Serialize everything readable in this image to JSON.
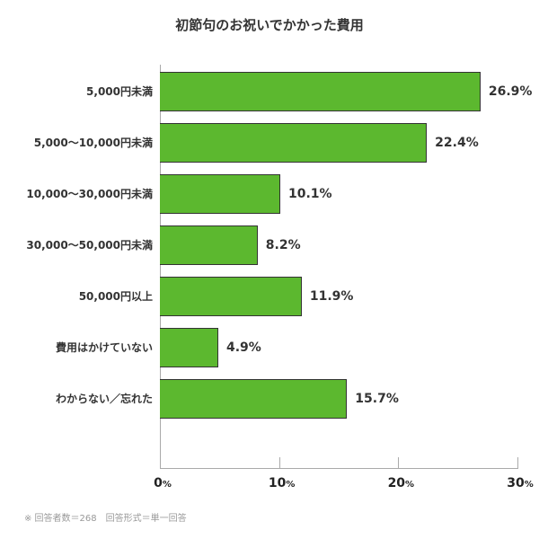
{
  "chart_data": {
    "type": "bar",
    "orientation": "horizontal",
    "title": "初節句のお祝いでかかった費用",
    "categories": [
      "5,000円未満",
      "5,000〜10,000円未満",
      "10,000〜30,000円未満",
      "30,000〜50,000円未満",
      "50,000円以上",
      "費用はかけていない",
      "わからない／忘れた"
    ],
    "values": [
      26.9,
      22.4,
      10.1,
      8.2,
      11.9,
      4.9,
      15.7
    ],
    "value_labels": [
      "26.9%",
      "22.4%",
      "10.1%",
      "8.2%",
      "11.9%",
      "4.9%",
      "15.7%"
    ],
    "xlabel": "",
    "ylabel": "",
    "xlim": [
      0,
      30
    ],
    "x_ticks": [
      0,
      10,
      20,
      30
    ],
    "x_tick_labels": [
      {
        "num": "0",
        "unit": "%"
      },
      {
        "num": "10",
        "unit": "%"
      },
      {
        "num": "20",
        "unit": "%"
      },
      {
        "num": "30",
        "unit": "%"
      }
    ],
    "grid": false,
    "legend": null,
    "bar_color": "#5cb82f",
    "bar_border_color": "#333333",
    "footnote": "※ 回答者数＝268　回答形式＝単一回答"
  }
}
